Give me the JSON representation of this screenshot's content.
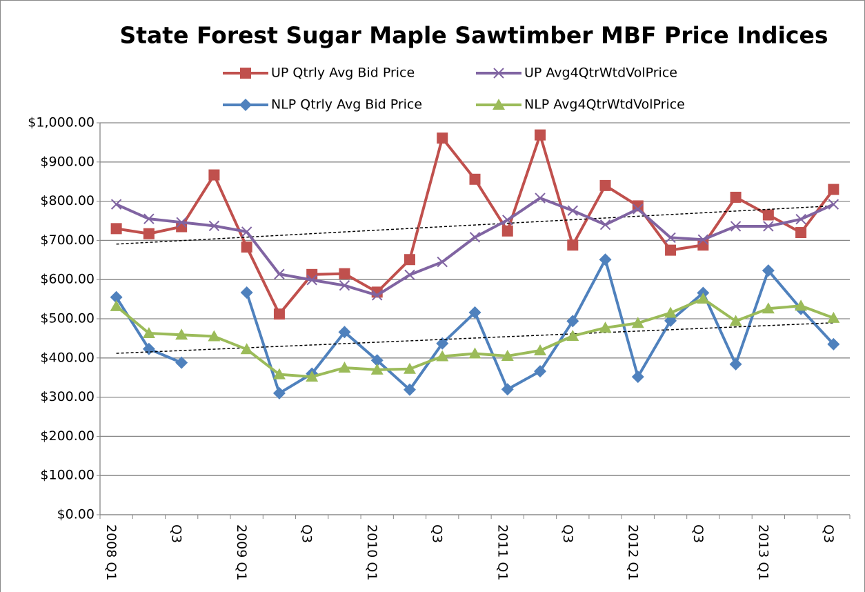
{
  "chart_data": {
    "type": "line",
    "title": "State Forest Sugar Maple Sawtimber MBF Price Indices",
    "categories": [
      "2008 Q1",
      null,
      "Q3",
      null,
      "2009 Q1",
      null,
      "Q3",
      null,
      "2010 Q1",
      null,
      "Q3",
      null,
      "2011 Q1",
      null,
      "Q3",
      null,
      "2012 Q1",
      null,
      "Q3",
      null,
      "2013 Q1",
      null,
      "Q3"
    ],
    "series": [
      {
        "name": "UP Qtrly Avg Bid Price",
        "color": "#c0504d",
        "marker": "square",
        "trendline": true,
        "values": [
          730,
          717,
          735,
          867,
          683,
          512,
          613,
          615,
          568,
          651,
          961,
          856,
          724,
          969,
          688,
          840,
          788,
          675,
          688,
          810,
          765,
          720,
          830
        ]
      },
      {
        "name": "UP Avg4QtrWtdVolPrice",
        "color": "#8064a2",
        "marker": "x",
        "values": [
          792,
          755,
          746,
          737,
          722,
          614,
          599,
          585,
          560,
          612,
          645,
          708,
          752,
          808,
          776,
          740,
          780,
          707,
          702,
          736,
          736,
          754,
          792
        ]
      },
      {
        "name": "NLP Qtrly Avg Bid Price",
        "color": "#4f81bd",
        "marker": "diamond",
        "trendline": true,
        "values": [
          555,
          423,
          388,
          null,
          567,
          310,
          360,
          466,
          394,
          319,
          437,
          516,
          320,
          366,
          494,
          651,
          352,
          495,
          566,
          384,
          623,
          525,
          435
        ]
      },
      {
        "name": "NLP Avg4QtrWtdVolPrice",
        "color": "#9bbb59",
        "marker": "triangle",
        "values": [
          532,
          463,
          459,
          455,
          422,
          358,
          352,
          375,
          370,
          372,
          404,
          411,
          405,
          419,
          456,
          477,
          489,
          515,
          551,
          494,
          526,
          533,
          502
        ]
      }
    ],
    "ylim": [
      0,
      1000
    ],
    "yticks": [
      {
        "value": 0,
        "label": "$0.00"
      },
      {
        "value": 100,
        "label": "$100.00"
      },
      {
        "value": 200,
        "label": "$200.00"
      },
      {
        "value": 300,
        "label": "$300.00"
      },
      {
        "value": 400,
        "label": "$400.00"
      },
      {
        "value": 500,
        "label": "$500.00"
      },
      {
        "value": 600,
        "label": "$600.00"
      },
      {
        "value": 700,
        "label": "$700.00"
      },
      {
        "value": 800,
        "label": "$800.00"
      },
      {
        "value": 900,
        "label": "$900.00"
      },
      {
        "value": 1000,
        "label": "$1,000.00"
      }
    ],
    "grid": true
  }
}
